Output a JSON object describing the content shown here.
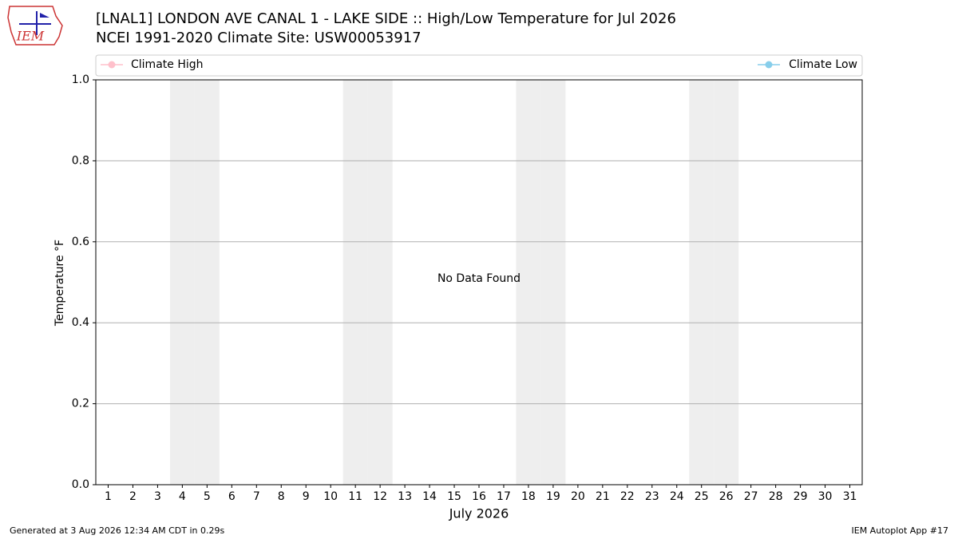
{
  "chart_data": {
    "type": "line",
    "title": "[LNAL1] LONDON AVE CANAL 1 - LAKE SIDE :: High/Low Temperature for Jul 2026",
    "subtitle": "NCEI 1991-2020 Climate Site: USW00053917",
    "x_label": "July 2026",
    "y_label": "Temperature °F",
    "annotation": "No Data Found",
    "categories": [
      "1",
      "2",
      "3",
      "4",
      "5",
      "6",
      "7",
      "8",
      "9",
      "10",
      "11",
      "12",
      "13",
      "14",
      "15",
      "16",
      "17",
      "18",
      "19",
      "20",
      "21",
      "22",
      "23",
      "24",
      "25",
      "26",
      "27",
      "28",
      "29",
      "30",
      "31"
    ],
    "shaded_categories": [
      "4",
      "5",
      "11",
      "12",
      "18",
      "19",
      "25",
      "26"
    ],
    "series": [
      {
        "name": "Climate High",
        "color": "#ffc0cb",
        "values": [
          null,
          null,
          null,
          null,
          null,
          null,
          null,
          null,
          null,
          null,
          null,
          null,
          null,
          null,
          null,
          null,
          null,
          null,
          null,
          null,
          null,
          null,
          null,
          null,
          null,
          null,
          null,
          null,
          null,
          null,
          null
        ]
      },
      {
        "name": "Climate Low",
        "color": "#87ceeb",
        "values": [
          null,
          null,
          null,
          null,
          null,
          null,
          null,
          null,
          null,
          null,
          null,
          null,
          null,
          null,
          null,
          null,
          null,
          null,
          null,
          null,
          null,
          null,
          null,
          null,
          null,
          null,
          null,
          null,
          null,
          null,
          null
        ]
      }
    ],
    "ylim": [
      0,
      1
    ],
    "yticks": [
      {
        "value": 0,
        "label": "0.0"
      },
      0.2,
      0.4,
      0.6,
      0.8,
      {
        "value": 1,
        "label": "1.0"
      }
    ],
    "grid": true,
    "footer_left": "Generated at 3 Aug 2026 12:34 AM CDT in 0.29s",
    "footer_right": "IEM Autoplot App #17",
    "logo_text": "IEM"
  }
}
